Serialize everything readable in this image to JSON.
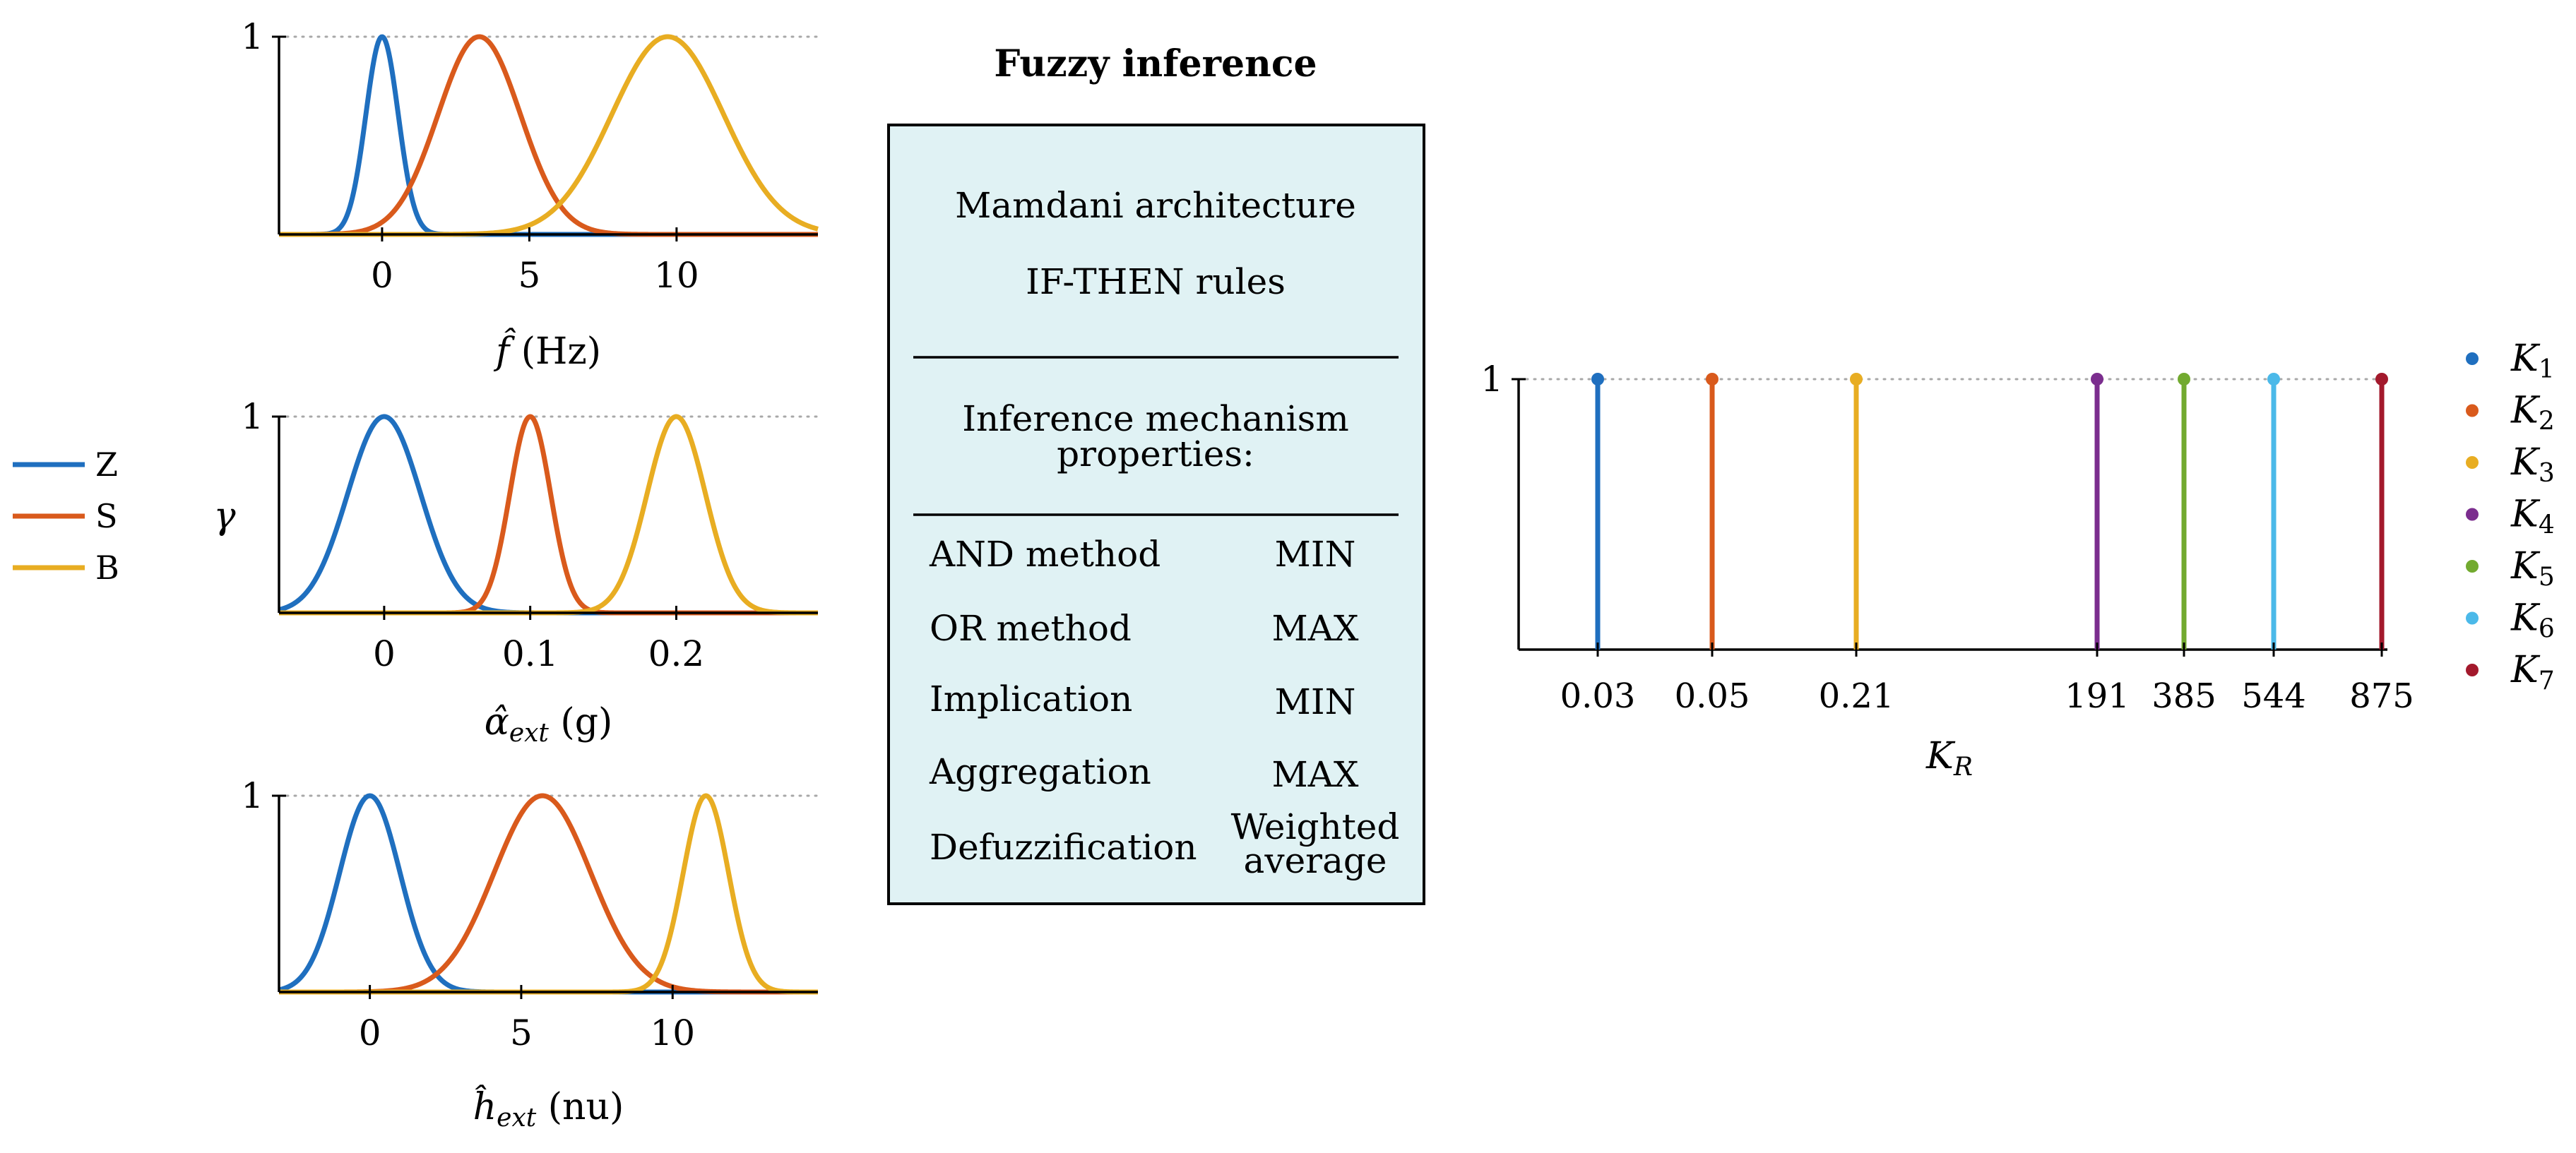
{
  "colors": {
    "Z": "#1f6fbf",
    "S": "#d95a1c",
    "B": "#e8ad22",
    "K1": "#1f6fbf",
    "K2": "#d95a1c",
    "K3": "#e8ad22",
    "K4": "#7b2d8e",
    "K5": "#72aa2f",
    "K6": "#4bb9e9",
    "K7": "#a3192c",
    "box_fill": "#e0f2f4",
    "grid": "#a8a8a8"
  },
  "legend": [
    {
      "key": "Z",
      "label": "Z"
    },
    {
      "key": "S",
      "label": "S"
    },
    {
      "key": "B",
      "label": "B"
    }
  ],
  "y_label": "γ",
  "membership_plots": [
    {
      "id": "f",
      "xlabel_main": "f̂",
      "xlabel_sub": "",
      "xlabel_unit": "(Hz)",
      "xlim": [
        -3.5,
        14.8
      ],
      "ylim": [
        0,
        1
      ],
      "xticks": [
        {
          "v": 0,
          "label": "0"
        },
        {
          "v": 5,
          "label": "5"
        },
        {
          "v": 10,
          "label": "10"
        }
      ],
      "yticks": [
        {
          "v": 1,
          "label": "1"
        }
      ],
      "curves": [
        {
          "name": "Z",
          "mu": 0,
          "sigma": 0.55
        },
        {
          "name": "S",
          "mu": 3.3,
          "sigma": 1.4
        },
        {
          "name": "B",
          "mu": 9.7,
          "sigma": 1.9
        }
      ]
    },
    {
      "id": "alpha",
      "xlabel_main": "α̂",
      "xlabel_sub": "ext",
      "xlabel_unit": "(g)",
      "xlim": [
        -0.072,
        0.297
      ],
      "ylim": [
        0,
        1
      ],
      "xticks": [
        {
          "v": 0,
          "label": "0"
        },
        {
          "v": 0.1,
          "label": "0.1"
        },
        {
          "v": 0.2,
          "label": "0.2"
        }
      ],
      "yticks": [
        {
          "v": 1,
          "label": "1"
        }
      ],
      "curves": [
        {
          "name": "Z",
          "mu": 0,
          "sigma": 0.025
        },
        {
          "name": "S",
          "mu": 0.1,
          "sigma": 0.014
        },
        {
          "name": "B",
          "mu": 0.2,
          "sigma": 0.02
        }
      ]
    },
    {
      "id": "h",
      "xlabel_main": "ĥ",
      "xlabel_sub": "ext",
      "xlabel_unit": "(nu)",
      "xlim": [
        -3.0,
        14.8
      ],
      "ylim": [
        0,
        1
      ],
      "xticks": [
        {
          "v": 0,
          "label": "0"
        },
        {
          "v": 5,
          "label": "5"
        },
        {
          "v": 10,
          "label": "10"
        }
      ],
      "yticks": [
        {
          "v": 1,
          "label": "1"
        }
      ],
      "curves": [
        {
          "name": "Z",
          "mu": 0,
          "sigma": 1.0
        },
        {
          "name": "S",
          "mu": 5.7,
          "sigma": 1.6
        },
        {
          "name": "B",
          "mu": 11.1,
          "sigma": 0.75
        }
      ]
    }
  ],
  "inference": {
    "title": "Fuzzy inference",
    "line1": "Mamdani architecture",
    "line2": "IF-THEN rules",
    "props_title_1": "Inference mechanism",
    "props_title_2": "properties:",
    "rows": [
      {
        "name": "AND method",
        "value": "MIN"
      },
      {
        "name": "OR method",
        "value": "MAX"
      },
      {
        "name": "Implication",
        "value": "MIN"
      },
      {
        "name": "Aggregation",
        "value": "MAX"
      },
      {
        "name": "Defuzzification",
        "value": "Weighted",
        "value2": "average"
      }
    ]
  },
  "chart_data": {
    "type": "stem",
    "title": "",
    "xlabel": "K",
    "xlabel_sub": "R",
    "ylabel": "",
    "ylim": [
      0,
      1
    ],
    "yticks": [
      {
        "v": 1,
        "label": "1"
      }
    ],
    "categories": [
      "0.03",
      "0.05",
      "0.21",
      "191",
      "385",
      "544",
      "875"
    ],
    "values": [
      1,
      1,
      1,
      1,
      1,
      1,
      1
    ],
    "series": [
      {
        "name": "K",
        "sub": "1",
        "x": "0.03",
        "value": 1,
        "color_key": "K1"
      },
      {
        "name": "K",
        "sub": "2",
        "x": "0.05",
        "value": 1,
        "color_key": "K2"
      },
      {
        "name": "K",
        "sub": "3",
        "x": "0.21",
        "value": 1,
        "color_key": "K3"
      },
      {
        "name": "K",
        "sub": "4",
        "x": "191",
        "value": 1,
        "color_key": "K4"
      },
      {
        "name": "K",
        "sub": "5",
        "x": "385",
        "value": 1,
        "color_key": "K5"
      },
      {
        "name": "K",
        "sub": "6",
        "x": "544",
        "value": 1,
        "color_key": "K6"
      },
      {
        "name": "K",
        "sub": "7",
        "x": "875",
        "value": 1,
        "color_key": "K7"
      }
    ],
    "legend_position": "right"
  }
}
